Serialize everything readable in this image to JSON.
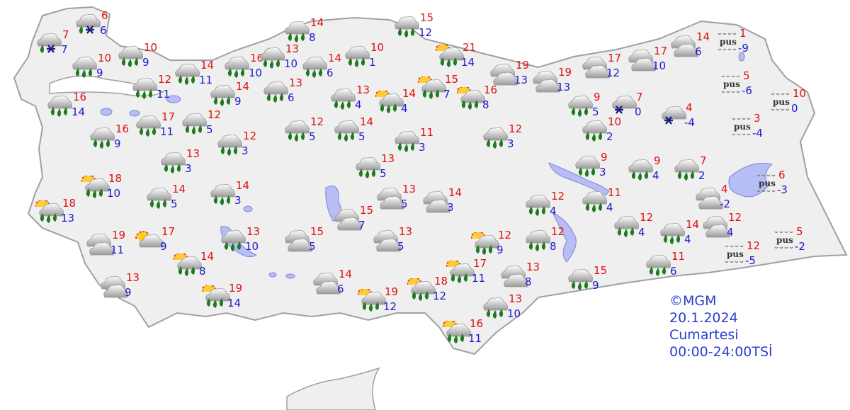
{
  "map": {
    "fog_label": "pus",
    "colors": {
      "max_temp": "#e01010",
      "min_temp": "#1a1acc",
      "land": "#efefef",
      "border": "#a0a0a0",
      "lake": "#b7bdf5",
      "rain": "#1e7a1e"
    },
    "stations": [
      {
        "icon": "snow-rain-icon",
        "max": "7",
        "min": "7"
      },
      {
        "icon": "snow-rain-icon",
        "max": "6",
        "min": "6"
      },
      {
        "icon": "rain-icon",
        "max": "10",
        "min": "9"
      },
      {
        "icon": "rain-icon",
        "max": "10",
        "min": "9"
      },
      {
        "icon": "rain-icon",
        "max": "16",
        "min": "14"
      },
      {
        "icon": "rain-icon",
        "max": "16",
        "min": "9"
      },
      {
        "icon": "rain-icon",
        "max": "12",
        "min": "11"
      },
      {
        "icon": "rain-icon",
        "max": "17",
        "min": "11"
      },
      {
        "icon": "rain-icon",
        "max": "14",
        "min": "11"
      },
      {
        "icon": "rain-icon",
        "max": "12",
        "min": "5"
      },
      {
        "icon": "rain-icon",
        "max": "13",
        "min": "3"
      },
      {
        "icon": "rain-icon",
        "max": "12",
        "min": "3"
      },
      {
        "icon": "rain-icon",
        "max": "16",
        "min": "10"
      },
      {
        "icon": "rain-icon",
        "max": "13",
        "min": "10"
      },
      {
        "icon": "rain-icon",
        "max": "14",
        "min": "8"
      },
      {
        "icon": "rain-icon",
        "max": "14",
        "min": "6"
      },
      {
        "icon": "rain-icon",
        "max": "13",
        "min": "6"
      },
      {
        "icon": "rain-icon",
        "max": "14",
        "min": "9"
      },
      {
        "icon": "rain-icon",
        "max": "10",
        "min": "1"
      },
      {
        "icon": "rain-icon",
        "max": "13",
        "min": "4"
      },
      {
        "icon": "sun-rain-icon",
        "max": "14",
        "min": "4"
      },
      {
        "icon": "rain-icon",
        "max": "15",
        "min": "12"
      },
      {
        "icon": "sun-rain-icon",
        "max": "21",
        "min": "14"
      },
      {
        "icon": "sun-rain-icon",
        "max": "15",
        "min": "7"
      },
      {
        "icon": "sun-rain-icon",
        "max": "16",
        "min": "8"
      },
      {
        "icon": "cloud-icon",
        "max": "19",
        "min": "13"
      },
      {
        "icon": "cloud-icon",
        "max": "19",
        "min": "13"
      },
      {
        "icon": "cloud-icon",
        "max": "17",
        "min": "12"
      },
      {
        "icon": "cloud-icon",
        "max": "17",
        "min": "10"
      },
      {
        "icon": "cloud-icon",
        "max": "14",
        "min": "6"
      },
      {
        "icon": "fog-icon",
        "max": "1",
        "min": "-9"
      },
      {
        "icon": "fog-icon",
        "max": "5",
        "min": "-6"
      },
      {
        "icon": "fog-icon",
        "max": "10",
        "min": "0"
      },
      {
        "icon": "fog-icon",
        "max": "3",
        "min": "-4"
      },
      {
        "icon": "fog-icon",
        "max": "6",
        "min": "-3"
      },
      {
        "icon": "fog-icon",
        "max": "5",
        "min": "-2"
      },
      {
        "icon": "fog-icon",
        "max": "12",
        "min": "-5"
      },
      {
        "icon": "snow-icon",
        "max": "7",
        "min": "0"
      },
      {
        "icon": "snow-icon",
        "max": "4",
        "min": "-4"
      },
      {
        "icon": "rain-icon",
        "max": "9",
        "min": "5"
      },
      {
        "icon": "rain-icon",
        "max": "10",
        "min": "2"
      },
      {
        "icon": "rain-icon",
        "max": "9",
        "min": "3"
      },
      {
        "icon": "rain-icon",
        "max": "9",
        "min": "4"
      },
      {
        "icon": "rain-icon",
        "max": "7",
        "min": "2"
      },
      {
        "icon": "cloud-icon",
        "max": "4",
        "min": "-2"
      },
      {
        "icon": "cloud-icon",
        "max": "12",
        "min": "4"
      },
      {
        "icon": "rain-icon",
        "max": "14",
        "min": "4"
      },
      {
        "icon": "rain-icon",
        "max": "12",
        "min": "4"
      },
      {
        "icon": "rain-icon",
        "max": "11",
        "min": "4"
      },
      {
        "icon": "rain-icon",
        "max": "12",
        "min": "4"
      },
      {
        "icon": "rain-icon",
        "max": "12",
        "min": "8"
      },
      {
        "icon": "cloud-icon",
        "max": "13",
        "min": "8"
      },
      {
        "icon": "rain-icon",
        "max": "15",
        "min": "9"
      },
      {
        "icon": "rain-icon",
        "max": "11",
        "min": "6"
      },
      {
        "icon": "rain-icon",
        "max": "13",
        "min": "10"
      },
      {
        "icon": "sun-rain-icon",
        "max": "16",
        "min": "11"
      },
      {
        "icon": "sun-rain-icon",
        "max": "17",
        "min": "11"
      },
      {
        "icon": "sun-rain-icon",
        "max": "12",
        "min": "9"
      },
      {
        "icon": "sun-rain-icon",
        "max": "18",
        "min": "12"
      },
      {
        "icon": "sun-rain-icon",
        "max": "19",
        "min": "12"
      },
      {
        "icon": "cloud-icon",
        "max": "14",
        "min": "6"
      },
      {
        "icon": "cloud-icon",
        "max": "15",
        "min": "5"
      },
      {
        "icon": "cloud-icon",
        "max": "13",
        "min": "5"
      },
      {
        "icon": "cloud-icon",
        "max": "15",
        "min": "7"
      },
      {
        "icon": "cloud-icon",
        "max": "13",
        "min": "5"
      },
      {
        "icon": "cloud-icon",
        "max": "14",
        "min": "3"
      },
      {
        "icon": "rain-icon",
        "max": "13",
        "min": "5"
      },
      {
        "icon": "rain-icon",
        "max": "11",
        "min": "3"
      },
      {
        "icon": "rain-icon",
        "max": "12",
        "min": "5"
      },
      {
        "icon": "rain-icon",
        "max": "14",
        "min": "5"
      },
      {
        "icon": "rain-icon",
        "max": "12",
        "min": "3"
      },
      {
        "icon": "rain-icon",
        "max": "14",
        "min": "3"
      },
      {
        "icon": "rain-icon",
        "max": "14",
        "min": "5"
      },
      {
        "icon": "sun-rain-icon",
        "max": "18",
        "min": "10"
      },
      {
        "icon": "sun-rain-icon",
        "max": "18",
        "min": "13"
      },
      {
        "icon": "cloud-icon",
        "max": "19",
        "min": "11"
      },
      {
        "icon": "sun-cloud-icon",
        "max": "17",
        "min": "9"
      },
      {
        "icon": "rain-icon",
        "max": "13",
        "min": "10"
      },
      {
        "icon": "sun-rain-icon",
        "max": "14",
        "min": "8"
      },
      {
        "icon": "sun-rain-icon",
        "max": "19",
        "min": "14"
      },
      {
        "icon": "cloud-icon",
        "max": "13",
        "min": "9"
      }
    ]
  },
  "info": {
    "copyright": "©MGM",
    "date": "20.1.2024",
    "day": "Cumartesi",
    "period": "00:00-24:00TSİ"
  }
}
